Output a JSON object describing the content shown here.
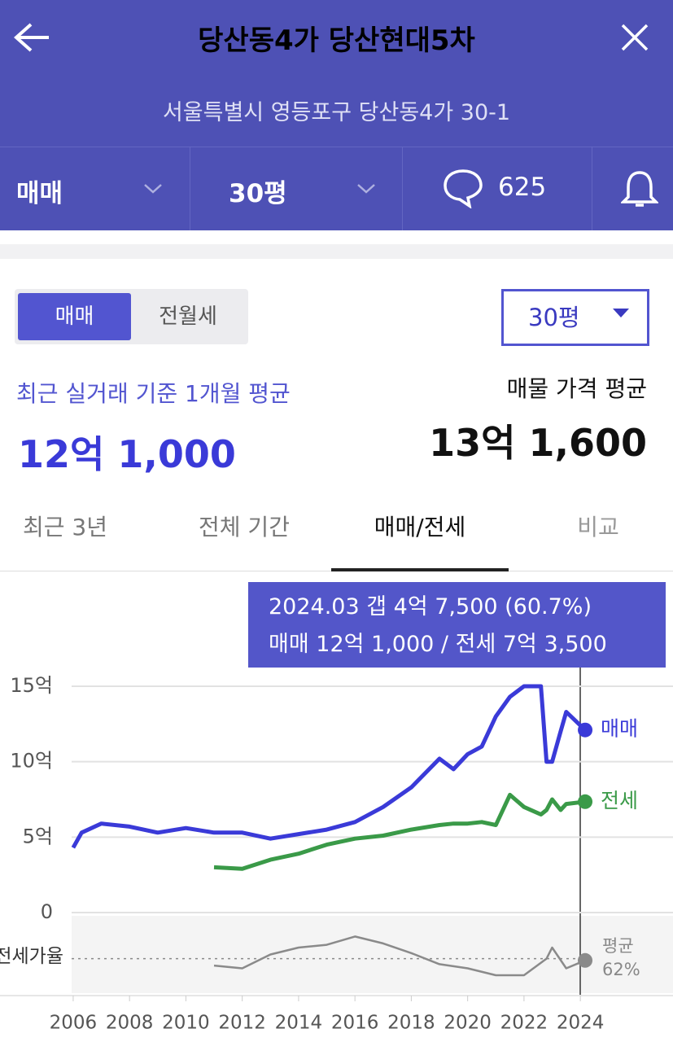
{
  "header": {
    "title": "당산동4가 당산현대5차",
    "address": "서울특별시 영등포구 당산동4가 30-1"
  },
  "filters": {
    "deal": "매매",
    "size": "30평",
    "comments": 625
  },
  "toggle": [
    "매매",
    "전월세"
  ],
  "size_select": "30평",
  "recent": {
    "label": "최근 실거래 기준 1개월 평균",
    "value": "12억 1,000"
  },
  "listing": {
    "label": "매물 가격 평균",
    "value": "13억 1,600"
  },
  "tabs": [
    "최근 3년",
    "전체 기간",
    "매매/전세",
    "비교"
  ],
  "tooltip": {
    "line1": "2024.03  갭 4억 7,500 (60.7%)",
    "line2": "매매 12억 1,000 / 전세 7억 3,500"
  },
  "chart_data": [
    {
      "type": "line",
      "x": [
        2006,
        2006.3,
        2007,
        2008,
        2009,
        2010,
        2011,
        2012,
        2013,
        2014,
        2015,
        2016,
        2017,
        2018,
        2019,
        2019.5,
        2020,
        2020.5,
        2021,
        2021.5,
        2022,
        2022.6,
        2022.8,
        2023,
        2023.3,
        2023.5,
        2024.17
      ],
      "series": [
        {
          "name": "매매",
          "color": "#3a3ad8",
          "values": [
            4.3,
            5.3,
            5.9,
            5.7,
            5.3,
            5.6,
            5.3,
            5.3,
            4.9,
            5.2,
            5.5,
            6.0,
            7.0,
            8.3,
            10.2,
            9.5,
            10.5,
            11.0,
            13.0,
            14.3,
            15.0,
            15.0,
            10.0,
            10.0,
            12.0,
            13.3,
            12.1
          ]
        },
        {
          "name": "전세",
          "color": "#3a9a48",
          "values": [
            null,
            null,
            null,
            null,
            null,
            null,
            3.0,
            2.9,
            3.5,
            3.9,
            4.5,
            4.9,
            5.1,
            5.5,
            5.8,
            5.9,
            5.9,
            6.0,
            5.8,
            7.8,
            7.0,
            6.5,
            6.8,
            7.5,
            6.8,
            7.2,
            7.35
          ]
        }
      ],
      "xlim": [
        2005.8,
        2024.4
      ],
      "xticks": [
        2006,
        2008,
        2010,
        2012,
        2014,
        2016,
        2018,
        2020,
        2022,
        2024
      ],
      "ylim": [
        0,
        15
      ],
      "yticks": [
        0,
        {
          "value": 5,
          "label": "5억"
        },
        {
          "value": 10,
          "label": "10억"
        },
        {
          "value": 15,
          "label": "15억"
        }
      ],
      "grid": true
    },
    {
      "type": "line",
      "ylabel": "전세가율",
      "x": [
        2011,
        2012,
        2013,
        2014,
        2015,
        2016,
        2017,
        2018,
        2019,
        2020,
        2021,
        2022,
        2022.8,
        2023,
        2023.5,
        2024.17
      ],
      "series": [
        {
          "name": "전세가율",
          "color": "#8a8a8a",
          "values": [
            57,
            55,
            65,
            70,
            72,
            78,
            73,
            66,
            58,
            55,
            50,
            50,
            62,
            70,
            55,
            60.7
          ]
        }
      ],
      "xlim": [
        2005.8,
        2024.4
      ],
      "ylim": [
        40,
        90
      ],
      "average": {
        "title": "평균",
        "value": 62,
        "label": "62%"
      }
    }
  ]
}
